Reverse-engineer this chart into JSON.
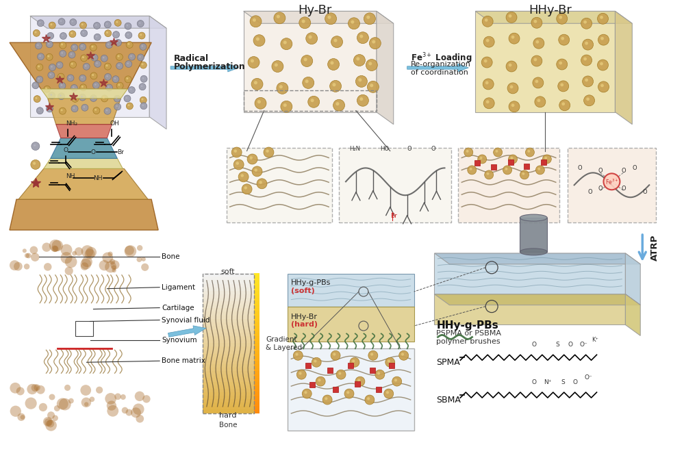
{
  "bg_color": "#ffffff",
  "title_hy_br": "Hy-Br",
  "title_hhy_br": "HHy-Br",
  "label_radical": "Radical\nPolymerization",
  "label_atrp": "ATRP",
  "label_bone": "Bone",
  "label_ligament": "Ligament",
  "label_cartilage": "Cartilage",
  "label_synovial": "Synovial fluid",
  "label_synovium": "Synovium",
  "label_bone_matrix": "Bone matrix",
  "label_soft": "soft",
  "label_hard": "hard",
  "label_gradient": "Gradient\n& Layered",
  "label_hhy_g_pbs": "HHy-g-PBs",
  "label_pspma": "PSPMA or PSBMA\npolymer brushes",
  "label_spma": "SPMA",
  "label_sbma": "SBMA",
  "color_gold": "#C8A050",
  "color_gray_bead": "#9899A8",
  "color_star": "#9A3535",
  "color_arrow_blue": "#6AABDD",
  "color_red_node": "#CC3333",
  "color_green_brush": "#3A6B3A",
  "color_bone": "#C8934A",
  "color_cartilage": "#E0D898",
  "color_synovial_blue": "#4A8FA0",
  "color_synovium_red": "#CC5544"
}
